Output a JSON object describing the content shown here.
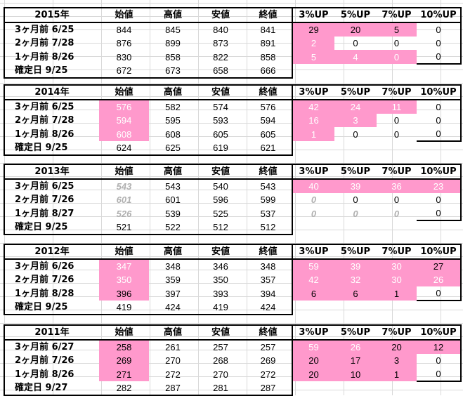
{
  "columns": {
    "open": "始値",
    "high": "高値",
    "low": "安値",
    "close": "終値",
    "p3": "3%UP",
    "p5": "5%UP",
    "p7": "7%UP",
    "p10": "10%UP"
  },
  "years": [
    {
      "title": "2015年",
      "rows": [
        {
          "label": "3ヶ月前  6/25",
          "open": "844",
          "high": "845",
          "low": "840",
          "close": "841",
          "p3": "29",
          "p5": "20",
          "p7": "5",
          "p10": "0"
        },
        {
          "label": "2ヶ月前  7/28",
          "open": "876",
          "high": "899",
          "low": "873",
          "close": "891",
          "p3": "2",
          "p5": "0",
          "p7": "0",
          "p10": "0"
        },
        {
          "label": "1ヶ月前  8/26",
          "open": "830",
          "high": "858",
          "low": "822",
          "close": "858",
          "p3": "5",
          "p5": "4",
          "p7": "0",
          "p10": "0"
        },
        {
          "label": "確定日    9/25",
          "open": "672",
          "high": "673",
          "low": "658",
          "close": "666"
        }
      ]
    },
    {
      "title": "2014年",
      "rows": [
        {
          "label": "3ヶ月前  6/25",
          "open": "576",
          "high": "582",
          "low": "574",
          "close": "576",
          "p3": "42",
          "p5": "24",
          "p7": "11",
          "p10": "0"
        },
        {
          "label": "2ヶ月前  7/28",
          "open": "594",
          "high": "595",
          "low": "593",
          "close": "594",
          "p3": "16",
          "p5": "3",
          "p7": "0",
          "p10": "0"
        },
        {
          "label": "1ヶ月前  8/26",
          "open": "608",
          "high": "608",
          "low": "605",
          "close": "605",
          "p3": "1",
          "p5": "0",
          "p7": "0",
          "p10": "0"
        },
        {
          "label": "確定日    9/25",
          "open": "624",
          "high": "625",
          "low": "619",
          "close": "621"
        }
      ]
    },
    {
      "title": "2013年",
      "rows": [
        {
          "label": "3ヶ月前  6/25",
          "open": "543",
          "high": "543",
          "low": "540",
          "close": "543",
          "p3": "40",
          "p5": "39",
          "p7": "36",
          "p10": "23"
        },
        {
          "label": "2ヶ月前  7/26",
          "open": "601",
          "high": "601",
          "low": "596",
          "close": "599",
          "p3": "0",
          "p5": "0",
          "p7": "0",
          "p10": "0"
        },
        {
          "label": "1ヶ月前  8/27",
          "open": "526",
          "high": "539",
          "low": "525",
          "close": "537",
          "p3": "0",
          "p5": "0",
          "p7": "0",
          "p10": "0"
        },
        {
          "label": "確定日    9/25",
          "open": "521",
          "high": "522",
          "low": "512",
          "close": "512"
        }
      ]
    },
    {
      "title": "2012年",
      "rows": [
        {
          "label": "3ヶ月前  6/26",
          "open": "347",
          "high": "348",
          "low": "346",
          "close": "348",
          "p3": "59",
          "p5": "39",
          "p7": "30",
          "p10": "27"
        },
        {
          "label": "2ヶ月前  7/26",
          "open": "350",
          "high": "359",
          "low": "350",
          "close": "357",
          "p3": "42",
          "p5": "32",
          "p7": "30",
          "p10": "26"
        },
        {
          "label": "1ヶ月前  8/28",
          "open": "396",
          "high": "397",
          "low": "393",
          "close": "394",
          "p3": "6",
          "p5": "6",
          "p7": "1",
          "p10": "0"
        },
        {
          "label": "確定日    9/25",
          "open": "419",
          "high": "424",
          "low": "419",
          "close": "424"
        }
      ]
    },
    {
      "title": "2011年",
      "rows": [
        {
          "label": "3ヶ月前  6/27",
          "open": "258",
          "high": "261",
          "low": "257",
          "close": "257",
          "p3": "59",
          "p5": "26",
          "p7": "20",
          "p10": "12"
        },
        {
          "label": "2ヶ月前  7/26",
          "open": "269",
          "high": "270",
          "low": "268",
          "close": "269",
          "p3": "20",
          "p5": "17",
          "p7": "3",
          "p10": "0"
        },
        {
          "label": "1ヶ月前  8/26",
          "open": "271",
          "high": "272",
          "low": "270",
          "close": "272",
          "p3": "20",
          "p5": "10",
          "p7": "1",
          "p10": "0"
        },
        {
          "label": "確定日    9/27",
          "open": "282",
          "high": "287",
          "low": "281",
          "close": "287"
        }
      ]
    }
  ],
  "colors": {
    "highlight": "#ff99cc",
    "grid": "#d9d9d9",
    "gray_text": "#b0b0b0"
  }
}
